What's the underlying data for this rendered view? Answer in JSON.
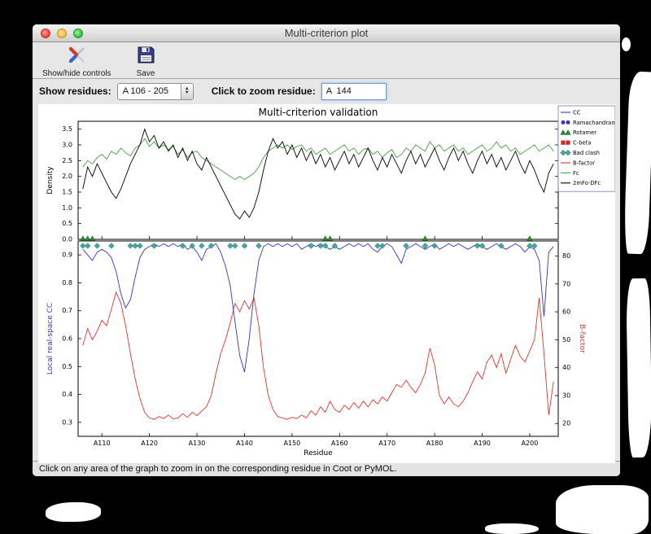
{
  "window": {
    "title": "Multi-criterion plot"
  },
  "toolbar": {
    "items": [
      {
        "label": "Show/hide controls",
        "icon": "tools-icon"
      },
      {
        "label": "Save",
        "icon": "save-icon"
      }
    ]
  },
  "controls": {
    "show_residues_label": "Show residues:",
    "residue_range_value": "A 106 - 205",
    "zoom_label": "Click to zoom residue:",
    "zoom_value": "A  144"
  },
  "status_bar": {
    "text": "Click on any area of the graph to zoom in on the corresponding residue in Coot or PyMOL."
  },
  "chart_data": {
    "type": "line",
    "title": "Multi-criterion validation",
    "xlabel": "Residue",
    "x_start": 106,
    "x_range": [
      105,
      206
    ],
    "x_ticks": [
      {
        "value": 110,
        "label": "A110"
      },
      {
        "value": 120,
        "label": "A120"
      },
      {
        "value": 130,
        "label": "A130"
      },
      {
        "value": 140,
        "label": "A140"
      },
      {
        "value": 150,
        "label": "A150"
      },
      {
        "value": 160,
        "label": "A160"
      },
      {
        "value": 170,
        "label": "A170"
      },
      {
        "value": 180,
        "label": "A180"
      },
      {
        "value": 190,
        "label": "A190"
      },
      {
        "value": 200,
        "label": "A200"
      }
    ],
    "top_plot": {
      "ylabel": "Density",
      "ylim": [
        0,
        3.75
      ],
      "yticks": [
        0.0,
        0.5,
        1.0,
        1.5,
        2.0,
        2.5,
        3.0,
        3.5
      ],
      "series": [
        {
          "name": "Fc",
          "color": "#44a044",
          "values": [
            2.3,
            2.5,
            2.4,
            2.6,
            2.7,
            2.55,
            2.8,
            2.7,
            2.9,
            2.75,
            2.65,
            2.9,
            3.0,
            3.2,
            2.95,
            3.1,
            2.9,
            3.0,
            2.85,
            2.95,
            2.7,
            2.85,
            2.6,
            2.75,
            2.8,
            2.6,
            2.5,
            2.4,
            2.3,
            2.2,
            2.1,
            2.0,
            1.9,
            2.0,
            1.9,
            2.0,
            2.1,
            2.3,
            2.6,
            2.8,
            2.9,
            3.0,
            2.9,
            3.0,
            2.85,
            2.95,
            3.0,
            2.8,
            2.9,
            2.7,
            2.8,
            2.9,
            2.7,
            2.8,
            2.9,
            3.0,
            2.8,
            2.9,
            2.7,
            2.85,
            2.9,
            2.7,
            2.8,
            2.6,
            2.75,
            2.85,
            2.6,
            2.7,
            2.9,
            2.8,
            3.0,
            2.9,
            2.8,
            3.1,
            2.9,
            3.0,
            2.8,
            2.9,
            3.0,
            2.8,
            2.9,
            2.7,
            2.8,
            2.9,
            3.0,
            2.8,
            2.9,
            3.1,
            2.9,
            3.0,
            2.8,
            2.9,
            2.7,
            2.8,
            2.9,
            3.0,
            2.8,
            2.9,
            3.0,
            2.8
          ]
        },
        {
          "name": "2mFo-DFc",
          "color": "#000000",
          "values": [
            1.6,
            2.3,
            2.0,
            2.4,
            2.1,
            1.8,
            1.5,
            1.3,
            1.6,
            2.0,
            2.4,
            2.7,
            3.0,
            3.5,
            3.1,
            3.3,
            2.9,
            3.1,
            2.8,
            3.0,
            2.6,
            2.9,
            2.5,
            2.8,
            2.4,
            2.2,
            2.6,
            2.3,
            2.0,
            1.7,
            1.4,
            1.1,
            0.8,
            0.65,
            0.9,
            0.7,
            1.0,
            1.5,
            2.2,
            2.8,
            3.2,
            2.9,
            3.1,
            2.7,
            3.0,
            2.6,
            2.9,
            2.5,
            2.8,
            2.4,
            2.7,
            2.3,
            2.6,
            2.2,
            2.5,
            2.8,
            2.4,
            2.7,
            2.3,
            2.6,
            2.9,
            2.5,
            2.2,
            2.6,
            2.3,
            2.7,
            2.4,
            2.1,
            2.5,
            2.8,
            2.4,
            2.7,
            2.3,
            2.6,
            2.9,
            2.5,
            2.2,
            2.6,
            2.9,
            2.5,
            2.8,
            2.4,
            2.1,
            2.5,
            2.8,
            2.4,
            2.7,
            2.3,
            2.6,
            2.2,
            2.5,
            2.8,
            2.4,
            2.1,
            2.5,
            2.2,
            1.8,
            1.5,
            2.1,
            2.4
          ]
        }
      ]
    },
    "bottom_plot": {
      "ylabel_left": "Local real-space CC",
      "ylabel_right": "B-factor",
      "ylim_left": [
        0.25,
        0.95
      ],
      "yticks_left": [
        0.3,
        0.4,
        0.5,
        0.6,
        0.7,
        0.8,
        0.9
      ],
      "ylim_right": [
        15.4,
        85.4
      ],
      "yticks_right": [
        20,
        30,
        40,
        50,
        60,
        70,
        80
      ],
      "series": [
        {
          "name": "CC",
          "axis": "left",
          "color": "#3333cc",
          "values": [
            0.92,
            0.9,
            0.88,
            0.91,
            0.92,
            0.91,
            0.89,
            0.84,
            0.76,
            0.71,
            0.74,
            0.82,
            0.89,
            0.92,
            0.93,
            0.94,
            0.93,
            0.94,
            0.93,
            0.94,
            0.93,
            0.94,
            0.92,
            0.93,
            0.91,
            0.88,
            0.92,
            0.93,
            0.94,
            0.91,
            0.86,
            0.79,
            0.66,
            0.54,
            0.48,
            0.6,
            0.76,
            0.88,
            0.93,
            0.94,
            0.93,
            0.94,
            0.93,
            0.94,
            0.93,
            0.94,
            0.92,
            0.93,
            0.94,
            0.93,
            0.94,
            0.93,
            0.92,
            0.93,
            0.92,
            0.93,
            0.94,
            0.93,
            0.94,
            0.93,
            0.94,
            0.92,
            0.91,
            0.93,
            0.94,
            0.93,
            0.9,
            0.87,
            0.92,
            0.93,
            0.94,
            0.93,
            0.92,
            0.93,
            0.94,
            0.92,
            0.93,
            0.94,
            0.93,
            0.94,
            0.93,
            0.92,
            0.93,
            0.94,
            0.93,
            0.92,
            0.93,
            0.94,
            0.93,
            0.92,
            0.93,
            0.94,
            0.93,
            0.91,
            0.93,
            0.92,
            0.88,
            0.68,
            0.91,
            0.93
          ]
        },
        {
          "name": "B-factor",
          "axis": "right",
          "color": "#e0352b",
          "values": [
            48,
            54,
            50,
            53,
            57,
            55,
            61,
            67,
            63,
            55,
            45,
            36,
            29,
            24,
            22,
            21.5,
            22.5,
            21.8,
            23,
            21.6,
            22,
            23.5,
            22.2,
            24,
            22.8,
            24.5,
            26,
            30,
            38,
            45,
            50,
            56,
            63,
            60,
            64,
            61,
            65,
            55,
            40,
            30,
            25,
            22.5,
            22,
            21.5,
            22.2,
            21.8,
            23,
            22,
            24.5,
            23,
            26,
            24,
            28,
            25,
            24,
            26.5,
            25,
            27.5,
            25.5,
            28,
            26,
            28.5,
            27,
            29.5,
            28,
            31,
            34,
            33,
            35.5,
            33,
            31,
            34,
            38,
            47,
            41,
            30,
            27,
            29.5,
            27,
            26,
            28,
            31,
            35,
            38.5,
            36,
            42,
            44.5,
            40,
            45,
            38,
            43,
            48,
            44,
            42,
            46,
            50,
            65,
            45,
            23,
            35
          ]
        }
      ],
      "markers": [
        {
          "name": "Ramachandran",
          "shape": "circle",
          "color": "#3333cc",
          "residues": []
        },
        {
          "name": "Rotamer",
          "shape": "triangle",
          "color": "#2e8b2e",
          "residues": [
            106,
            107,
            108,
            157,
            158,
            178,
            200
          ]
        },
        {
          "name": "C-beta",
          "shape": "square",
          "color": "#cc2a2a",
          "residues": []
        },
        {
          "name": "Bad clash",
          "shape": "diamond",
          "color": "#45a8a0",
          "residues": [
            106,
            107,
            109,
            112,
            116,
            117,
            118,
            121,
            127,
            129,
            131,
            133,
            137,
            138,
            140,
            143,
            154,
            156,
            157,
            159,
            168,
            169,
            174,
            178,
            180,
            189,
            190,
            194,
            200,
            201
          ]
        }
      ]
    },
    "legend": [
      {
        "label": "CC",
        "type": "line",
        "color": "#3333cc"
      },
      {
        "label": "Ramachandran",
        "type": "circle",
        "color": "#3333cc"
      },
      {
        "label": "Rotamer",
        "type": "triangle",
        "color": "#2e8b2e"
      },
      {
        "label": "C-beta",
        "type": "square",
        "color": "#cc2a2a"
      },
      {
        "label": "Bad clash",
        "type": "diamond",
        "color": "#45a8a0"
      },
      {
        "label": "B-factor",
        "type": "line",
        "color": "#e0352b"
      },
      {
        "label": "Fc",
        "type": "line",
        "color": "#44a044"
      },
      {
        "label": "2mFo-DFc",
        "type": "line",
        "color": "#000000"
      }
    ]
  }
}
